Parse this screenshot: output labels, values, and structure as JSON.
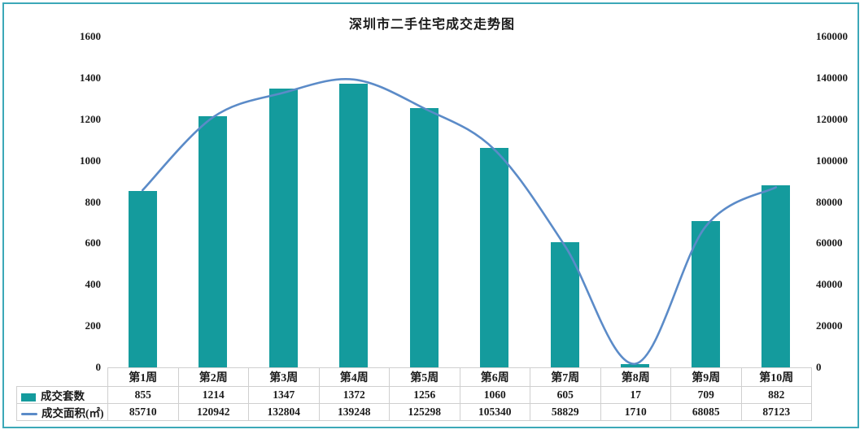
{
  "chart_data": {
    "type": "bar",
    "combo": "bar+line",
    "title": "深圳市二手住宅成交走势图",
    "categories": [
      "第1周",
      "第2周",
      "第3周",
      "第4周",
      "第5周",
      "第6周",
      "第7周",
      "第8周",
      "第9周",
      "第10周"
    ],
    "series": [
      {
        "name": "成交套数",
        "type": "bar",
        "axis": "left",
        "color": "#149B9D",
        "values": [
          855,
          1214,
          1347,
          1372,
          1256,
          1060,
          605,
          17,
          709,
          882
        ]
      },
      {
        "name": "成交面积(㎡)",
        "type": "line",
        "axis": "right",
        "color": "#5B8BC8",
        "smooth": true,
        "values": [
          85710,
          120942,
          132804,
          139248,
          125298,
          105340,
          58829,
          1710,
          68085,
          87123
        ]
      }
    ],
    "left_axis": {
      "min": 0,
      "max": 1600,
      "step": 200,
      "ticks": [
        "0",
        "200",
        "400",
        "600",
        "800",
        "1000",
        "1200",
        "1400",
        "1600"
      ]
    },
    "right_axis": {
      "min": 0,
      "max": 160000,
      "step": 20000,
      "ticks": [
        "0",
        "20000",
        "40000",
        "60000",
        "80000",
        "100000",
        "120000",
        "140000",
        "160000"
      ]
    },
    "grid": false,
    "legend_position": "data-table-left",
    "data_table_shown": true
  },
  "colors": {
    "frame_border": "#3CA8B8",
    "bar": "#149B9D",
    "line": "#5B8BC8",
    "table_border": "#CFCFCF",
    "text": "#1A1A1A"
  }
}
